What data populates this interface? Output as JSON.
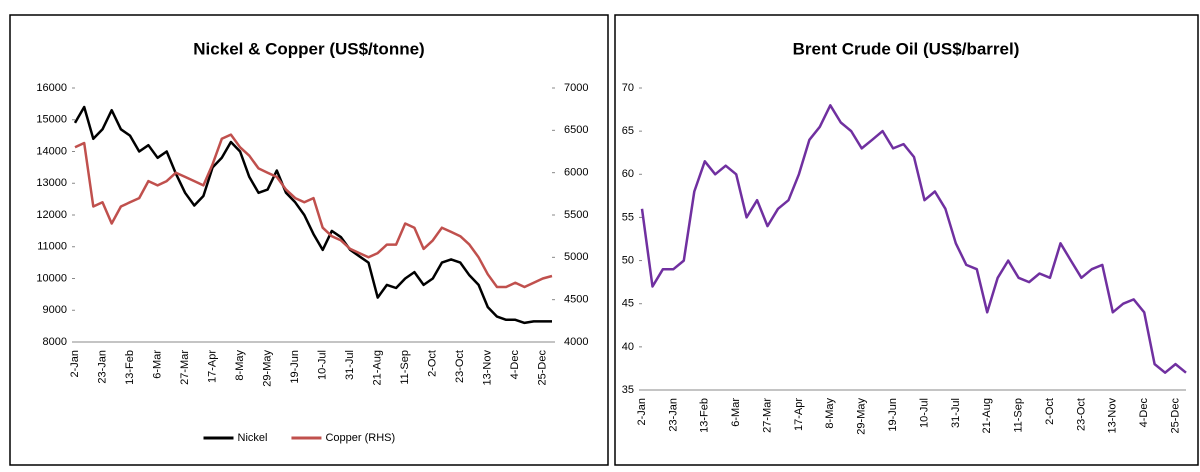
{
  "chart_data": [
    {
      "type": "line",
      "title": "Nickel & Copper (US$/tonne)",
      "categories": [
        "2-Jan",
        null,
        null,
        "23-Jan",
        null,
        null,
        "13-Feb",
        null,
        null,
        "6-Mar",
        null,
        null,
        "27-Mar",
        null,
        null,
        "17-Apr",
        null,
        null,
        "8-May",
        null,
        null,
        "29-May",
        null,
        null,
        "19-Jun",
        null,
        null,
        "10-Jul",
        null,
        null,
        "31-Jul",
        null,
        null,
        "21-Aug",
        null,
        null,
        "11-Sep",
        null,
        null,
        "2-Oct",
        null,
        null,
        "23-Oct",
        null,
        null,
        "13-Nov",
        null,
        null,
        "4-Dec",
        null,
        null,
        "25-Dec",
        null
      ],
      "series": [
        {
          "name": "Nickel",
          "color": "#000000",
          "axis": "y",
          "values": [
            14900,
            15400,
            14400,
            14700,
            15300,
            14700,
            14500,
            14000,
            14200,
            13800,
            14000,
            13300,
            12700,
            12300,
            12600,
            13500,
            13800,
            14300,
            14000,
            13200,
            12700,
            12800,
            13400,
            12700,
            12400,
            12000,
            11400,
            10900,
            11500,
            11300,
            10900,
            10700,
            10500,
            9400,
            9800,
            9700,
            10000,
            10200,
            9800,
            10000,
            10500,
            10600,
            10500,
            10100,
            9800,
            9100,
            8800,
            8700,
            8700,
            8600,
            8650,
            8650,
            8650
          ]
        },
        {
          "name": "Copper (RHS)",
          "color": "#c0504d",
          "axis": "y2",
          "values": [
            6300,
            6350,
            5600,
            5650,
            5400,
            5600,
            5650,
            5700,
            5900,
            5850,
            5900,
            6000,
            5950,
            5900,
            5850,
            6100,
            6400,
            6450,
            6300,
            6200,
            6050,
            6000,
            5950,
            5800,
            5700,
            5650,
            5700,
            5350,
            5250,
            5200,
            5100,
            5050,
            5000,
            5050,
            5150,
            5150,
            5400,
            5350,
            5100,
            5200,
            5350,
            5300,
            5250,
            5150,
            5000,
            4800,
            4650,
            4650,
            4700,
            4650,
            4700,
            4750,
            4780
          ]
        }
      ],
      "ylim": [
        8000,
        16000
      ],
      "yticks": [
        8000,
        9000,
        10000,
        11000,
        12000,
        13000,
        14000,
        15000,
        16000
      ],
      "y2lim": [
        4000,
        7000
      ],
      "y2ticks": [
        4000,
        4500,
        5000,
        5500,
        6000,
        6500,
        7000
      ],
      "grid": false,
      "legend": "bottom"
    },
    {
      "type": "line",
      "title": "Brent Crude Oil (US$/barrel)",
      "categories": [
        "2-Jan",
        null,
        null,
        "23-Jan",
        null,
        null,
        "13-Feb",
        null,
        null,
        "6-Mar",
        null,
        null,
        "27-Mar",
        null,
        null,
        "17-Apr",
        null,
        null,
        "8-May",
        null,
        null,
        "29-May",
        null,
        null,
        "19-Jun",
        null,
        null,
        "10-Jul",
        null,
        null,
        "31-Jul",
        null,
        null,
        "21-Aug",
        null,
        null,
        "11-Sep",
        null,
        null,
        "2-Oct",
        null,
        null,
        "23-Oct",
        null,
        null,
        "13-Nov",
        null,
        null,
        "4-Dec",
        null,
        null,
        "25-Dec",
        null
      ],
      "series": [
        {
          "name": "Brent",
          "color": "#7030a0",
          "axis": "y",
          "values": [
            56,
            47,
            49,
            49,
            50,
            58,
            61.5,
            60,
            61,
            60,
            55,
            57,
            54,
            56,
            57,
            60,
            64,
            65.5,
            68,
            66,
            65,
            63,
            64,
            65,
            63,
            63.5,
            62,
            57,
            58,
            56,
            52,
            49.5,
            49,
            44,
            48,
            50,
            48,
            47.5,
            48.5,
            48,
            52,
            50,
            48,
            49,
            49.5,
            44,
            45,
            45.5,
            44,
            38,
            37,
            38,
            37
          ]
        }
      ],
      "ylim": [
        35,
        70
      ],
      "yticks": [
        35,
        40,
        45,
        50,
        55,
        60,
        65,
        70
      ],
      "grid": false,
      "legend": "none"
    }
  ]
}
